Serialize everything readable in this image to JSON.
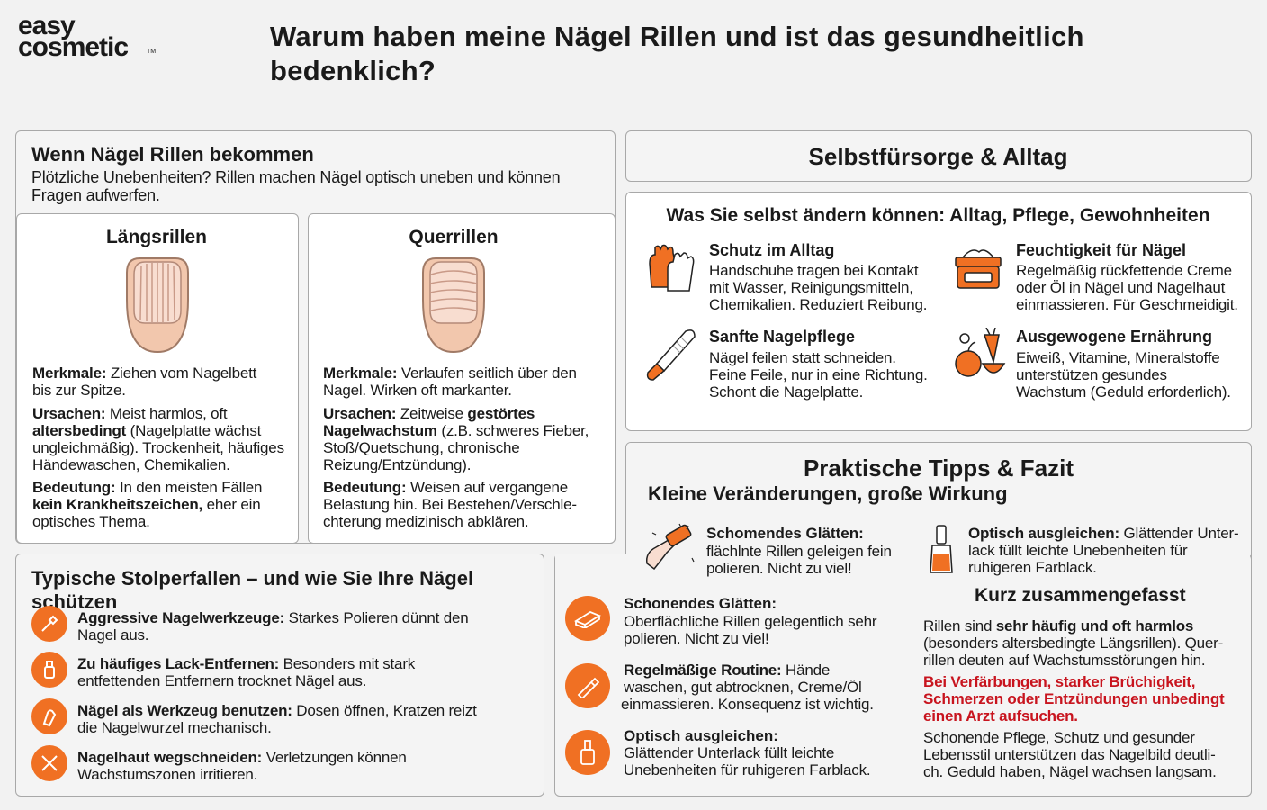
{
  "logo": {
    "line1": "easy",
    "line2": "cosmetic",
    "tm": "TM"
  },
  "page_title": {
    "line1": "Warum haben meine Nägel Rillen und ist das gesundheitlich",
    "line2": "bedenklich?"
  },
  "intro": {
    "title": "Wenn Nägel Rillen bekommen",
    "text1": "Plötzliche Unebenheiten? Rillen machen Nägel optisch uneben und können",
    "text2": "Fragen aufwerfen."
  },
  "laengs": {
    "title": "Längsrillen",
    "merk_label": "Merkmale:",
    "merk_1": "Ziehen vom Nagelbett",
    "merk_2": "bis zur Spitze.",
    "urs_label": "Ursachen:",
    "urs_1": "Meist harmlos, oft",
    "urs_bold": "altersbedingt",
    "urs_2": "(Nagelplatte wächst",
    "urs_3": "ungleichmäßig). Trockenheit, häufiges",
    "urs_4": "Händewaschen, Chemikalien.",
    "bed_label": "Bedeutung:",
    "bed_1": "In den meisten Fällen",
    "bed_bold": "kein Krankheitszeichen,",
    "bed_2": "eher ein",
    "bed_3": "optisches Thema."
  },
  "quer": {
    "title": "Querrillen",
    "merk_label": "Merkmale:",
    "merk_1": "Verlaufen seitlich über den",
    "merk_2": "Nagel. Wirken oft markanter.",
    "urs_label": "Ursachen:",
    "urs_1": "Zeitweise",
    "urs_bold1": "gestörtes",
    "urs_bold2": "Nagelwachstum",
    "urs_2": "(z.B. schweres Fieber,",
    "urs_3": "Stoß/Quetschung, chronische",
    "urs_4": "Reizung/Entzündung).",
    "bed_label": "Bedeutung:",
    "bed_1": "Weisen auf vergangene",
    "bed_2": "Belastung hin. Bei Bestehen/Verschle-",
    "bed_3": "chterung medizinisch abklären."
  },
  "pitfalls": {
    "title": "Typische Stolperfallen – und wie Sie Ihre Nägel schützen",
    "items": [
      {
        "bold": "Aggressive Nagelwerkzeuge:",
        "text1": "Starkes Polieren dünnt den",
        "text2": "Nagel aus."
      },
      {
        "bold": "Zu häufiges Lack-Entfernen:",
        "text1": "Besonders mit stark",
        "text2": "entfettenden Entfernern trocknet Nägel aus."
      },
      {
        "bold": "Nägel als Werkzeug benutzen:",
        "text1": "Dosen öffnen, Kratzen reizt",
        "text2": "die Nagelwurzel mechanisch."
      },
      {
        "bold": "Nagelhaut wegschneiden:",
        "text1": "Verletzungen können",
        "text2": "Wachstumszonen irritieren."
      }
    ]
  },
  "selfcare": {
    "header": "Selbstfürsorge & Alltag",
    "subtitle": "Was Sie selbst ändern können: Alltag, Pflege, Gewohnheiten",
    "items": [
      {
        "title": "Schutz im Alltag",
        "l1": "Handschuhe tragen bei Kontakt",
        "l2": "mit Wasser, Reinigungsmitteln,",
        "l3": "Chemikalien. Reduziert Reibung."
      },
      {
        "title": "Feuchtigkeit für Nägel",
        "l1": "Regelmäßig rückfettende Creme",
        "l2": "oder Öl in Nägel und Nagelhaut",
        "l3": "einmassieren. Für Geschmeidigit."
      },
      {
        "title": "Sanfte Nagelpflege",
        "l1": "Nägel feilen statt schneiden.",
        "l2": "Feine Feile, nur in eine Richtung.",
        "l3": "Schont die Nagelplatte."
      },
      {
        "title": "Ausgewogene Ernährung",
        "l1": "Eiweiß, Vitamine, Mineralstoffe",
        "l2": "unterstützen gesundes",
        "l3": "Wachstum (Geduld erforderlich)."
      }
    ]
  },
  "tips": {
    "title": "Praktische Tipps & Fazit",
    "subtitle": "Kleine Veränderungen, große Wirkung",
    "top": [
      {
        "bold": "Schomendes Glätten:",
        "l1": "flächlnte Rillen geleigen fein",
        "l2": "polieren. Nicht zu viel!"
      },
      {
        "bold": "Optisch ausgleichen:",
        "rest": "Glättender Unter-",
        "l1": "lack füllt leichte Unebenheiten für",
        "l2": "ruhigeren Farblack."
      }
    ],
    "left": [
      {
        "bold": "Schonendes Glätten:",
        "l1": "Oberflächliche Rillen gelegentlich sehr",
        "l2": "polieren. Nicht zu viel!"
      },
      {
        "bold": "Regelmäßige Routine:",
        "rest": "Hände",
        "l1": "waschen, gut abtrocknen, Creme/Öl",
        "l2": "einmassieren. Konsequenz ist wichtig."
      },
      {
        "bold": "Optisch ausgleichen:",
        "l1": "Glättender Unterlack füllt leichte",
        "l2": "Unebenheiten für ruhigeren Farblack."
      }
    ],
    "summary": {
      "title": "Kurz zusammengefasst",
      "p1_pre": "Rillen sind",
      "p1_bold": "sehr häufig und oft harmlos",
      "p1_l2": "(besonders altersbedingte Längsrillen). Quer-",
      "p1_l3": "rillen deuten auf Wachstumsstörungen hin.",
      "warn_1": "Bei Verfärbungen, starker Brüchigkeit,",
      "warn_2": "Schmerzen oder Entzündungen unbedingt",
      "warn_3": "einen Arzt aufsuchen.",
      "p3_l1": "Schonende Pflege, Schutz und gesunder",
      "p3_l2": "Lebensstil unterstützen das Nagelbild deutli-",
      "p3_l3": "ch. Geduld haben, Nägel wachsen langsam."
    }
  },
  "colors": {
    "accent": "#f07023",
    "warning": "#c8141e",
    "panel_border": "#a8a8a8"
  }
}
